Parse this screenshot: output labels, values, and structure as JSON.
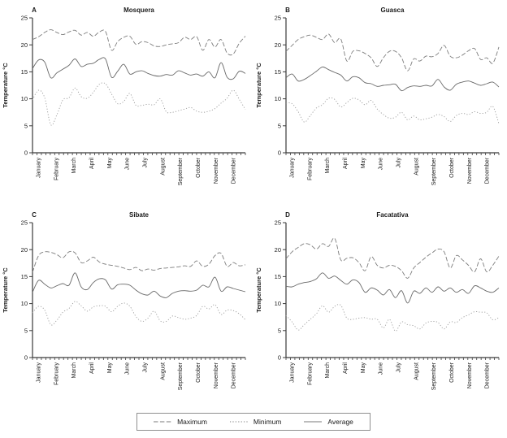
{
  "figure": {
    "ylabel": "Temperature °C",
    "months": [
      "January",
      "February",
      "March",
      "April",
      "May",
      "June",
      "July",
      "August",
      "September",
      "October",
      "November",
      "December"
    ],
    "yticks": [
      0,
      5,
      10,
      15,
      20,
      25
    ],
    "ylim": [
      0,
      25
    ],
    "points_per_month": 3,
    "minor_ticks_x": 48
  },
  "colors": {
    "background": "#ffffff",
    "axis": "#3a3a3a",
    "text": "#1a1a1a",
    "line_maximum": "#7d7d7d",
    "line_average": "#686868",
    "line_minimum": "#9b9b9b",
    "legend_border": "#8f8f8f"
  },
  "legend": {
    "items": [
      {
        "label": "Maximum",
        "style": "dash"
      },
      {
        "label": "Minimum",
        "style": "dot"
      },
      {
        "label": "Average",
        "style": "solid"
      }
    ]
  },
  "chart_data": [
    {
      "type": "line",
      "panel_label": "A",
      "title": "Mosquera",
      "xlabel": "",
      "ylabel": "Temperature °C",
      "ylim": [
        0,
        25
      ],
      "yticks": [
        0,
        5,
        10,
        15,
        20,
        25
      ],
      "x_categories": [
        "January",
        "February",
        "March",
        "April",
        "May",
        "June",
        "July",
        "August",
        "September",
        "October",
        "November",
        "December"
      ],
      "series": [
        {
          "name": "Maximum",
          "style": "dash",
          "values": [
            21.0,
            21.5,
            22.3,
            22.8,
            22.3,
            21.9,
            22.4,
            22.7,
            21.8,
            22.3,
            21.6,
            22.4,
            22.5,
            19.0,
            20.6,
            21.4,
            21.6,
            20.1,
            20.6,
            20.4,
            19.8,
            19.7,
            20.0,
            20.2,
            20.4,
            21.4,
            21.0,
            21.5,
            19.0,
            21.0,
            19.6,
            21.0,
            18.5,
            18.3,
            20.3,
            21.6
          ]
        },
        {
          "name": "Average",
          "style": "solid",
          "values": [
            15.6,
            17.2,
            16.8,
            13.9,
            14.8,
            15.5,
            16.2,
            17.4,
            16.0,
            16.4,
            16.6,
            17.3,
            17.4,
            14.0,
            15.1,
            16.4,
            14.6,
            15.0,
            15.2,
            14.7,
            14.3,
            14.2,
            14.5,
            14.4,
            15.2,
            14.8,
            14.4,
            14.6,
            14.2,
            15.0,
            13.9,
            16.7,
            14.0,
            13.7,
            15.1,
            14.7
          ]
        },
        {
          "name": "Minimum",
          "style": "dot",
          "values": [
            9.8,
            11.6,
            10.2,
            5.2,
            7.0,
            9.8,
            10.2,
            12.0,
            10.4,
            10.1,
            11.2,
            12.7,
            12.8,
            10.9,
            9.1,
            9.5,
            11.0,
            8.8,
            8.8,
            9.0,
            8.9,
            10.0,
            7.6,
            7.5,
            7.8,
            8.1,
            8.4,
            7.7,
            7.5,
            7.7,
            8.2,
            9.2,
            10.1,
            11.6,
            9.9,
            8.0
          ]
        }
      ]
    },
    {
      "type": "line",
      "panel_label": "B",
      "title": "Guasca",
      "xlabel": "",
      "ylabel": "Temperature °C",
      "ylim": [
        0,
        25
      ],
      "yticks": [
        0,
        5,
        10,
        15,
        20,
        25
      ],
      "x_categories": [
        "January",
        "February",
        "March",
        "April",
        "May",
        "June",
        "July",
        "August",
        "September",
        "October",
        "November",
        "December"
      ],
      "series": [
        {
          "name": "Maximum",
          "style": "dash",
          "values": [
            18.8,
            19.9,
            21.0,
            21.5,
            21.8,
            21.4,
            21.0,
            22.0,
            20.4,
            21.1,
            17.0,
            18.8,
            18.9,
            18.4,
            17.6,
            16.0,
            17.6,
            18.8,
            18.8,
            17.6,
            15.2,
            17.4,
            17.0,
            17.9,
            17.8,
            18.4,
            19.9,
            17.9,
            17.6,
            18.1,
            18.9,
            19.3,
            17.3,
            17.6,
            16.6,
            19.6
          ]
        },
        {
          "name": "Average",
          "style": "solid",
          "values": [
            13.9,
            14.6,
            13.3,
            13.6,
            14.3,
            15.1,
            15.9,
            15.4,
            14.9,
            14.4,
            13.3,
            14.1,
            13.9,
            13.0,
            12.8,
            12.3,
            12.5,
            12.6,
            12.7,
            11.5,
            12.1,
            12.4,
            12.3,
            12.5,
            12.4,
            13.6,
            12.2,
            11.6,
            12.7,
            13.1,
            13.3,
            12.9,
            12.5,
            12.8,
            13.1,
            12.2
          ]
        },
        {
          "name": "Minimum",
          "style": "dot",
          "values": [
            9.2,
            9.1,
            7.6,
            5.7,
            6.9,
            8.3,
            8.9,
            10.1,
            9.9,
            8.5,
            9.3,
            10.1,
            9.8,
            8.9,
            9.7,
            8.1,
            7.1,
            6.4,
            6.6,
            7.5,
            6.1,
            6.8,
            6.1,
            6.3,
            6.6,
            7.1,
            6.7,
            5.8,
            6.9,
            7.3,
            7.1,
            7.6,
            7.3,
            7.5,
            8.6,
            5.4
          ]
        }
      ]
    },
    {
      "type": "line",
      "panel_label": "C",
      "title": "Sibate",
      "xlabel": "",
      "ylabel": "Temperature °C",
      "ylim": [
        0,
        25
      ],
      "yticks": [
        0,
        5,
        10,
        15,
        20,
        25
      ],
      "x_categories": [
        "January",
        "February",
        "March",
        "April",
        "May",
        "June",
        "July",
        "August",
        "September",
        "October",
        "November",
        "December"
      ],
      "series": [
        {
          "name": "Maximum",
          "style": "dash",
          "values": [
            15.8,
            18.9,
            19.6,
            19.5,
            19.1,
            18.5,
            19.6,
            19.4,
            17.6,
            17.9,
            18.6,
            17.7,
            17.3,
            17.1,
            16.9,
            16.6,
            16.3,
            16.7,
            16.1,
            16.4,
            16.2,
            16.5,
            16.6,
            16.7,
            16.8,
            17.0,
            16.9,
            17.9,
            16.9,
            17.3,
            18.9,
            19.3,
            16.9,
            17.6,
            17.0,
            17.2
          ]
        },
        {
          "name": "Average",
          "style": "solid",
          "values": [
            12.1,
            14.3,
            13.6,
            12.9,
            13.3,
            13.7,
            13.4,
            15.7,
            13.1,
            12.6,
            13.9,
            14.6,
            14.4,
            12.7,
            13.5,
            13.6,
            13.4,
            12.5,
            11.8,
            11.6,
            12.3,
            11.4,
            11.1,
            11.9,
            12.3,
            12.4,
            12.3,
            12.5,
            13.4,
            13.1,
            14.9,
            12.3,
            13.1,
            12.8,
            12.5,
            12.2
          ]
        },
        {
          "name": "Minimum",
          "style": "dot",
          "values": [
            8.3,
            9.5,
            8.8,
            6.1,
            6.9,
            8.4,
            9.1,
            10.4,
            9.6,
            8.6,
            9.4,
            9.6,
            9.5,
            8.5,
            9.5,
            10.1,
            9.5,
            7.6,
            6.7,
            7.3,
            8.6,
            6.8,
            6.7,
            7.7,
            7.4,
            7.1,
            7.3,
            7.8,
            9.5,
            9.0,
            9.8,
            8.0,
            8.8,
            8.7,
            8.1,
            7.0
          ]
        }
      ]
    },
    {
      "type": "line",
      "panel_label": "D",
      "title": "Facatativa",
      "xlabel": "",
      "ylabel": "Temperature °C",
      "ylim": [
        0,
        25
      ],
      "yticks": [
        0,
        5,
        10,
        15,
        20,
        25
      ],
      "x_categories": [
        "January",
        "February",
        "March",
        "April",
        "May",
        "June",
        "July",
        "August",
        "September",
        "October",
        "November",
        "December"
      ],
      "series": [
        {
          "name": "Maximum",
          "style": "dash",
          "values": [
            18.3,
            19.6,
            20.4,
            21.1,
            20.9,
            20.1,
            21.1,
            20.6,
            22.1,
            18.1,
            18.4,
            18.5,
            17.6,
            16.1,
            18.7,
            17.1,
            16.6,
            17.1,
            16.9,
            16.1,
            14.7,
            16.6,
            17.6,
            18.6,
            19.4,
            20.1,
            19.6,
            16.6,
            18.9,
            18.1,
            17.1,
            15.9,
            18.3,
            15.9,
            17.1,
            18.8
          ]
        },
        {
          "name": "Average",
          "style": "solid",
          "values": [
            13.2,
            13.1,
            13.6,
            13.9,
            14.1,
            14.6,
            15.7,
            14.7,
            15.1,
            14.3,
            13.6,
            14.4,
            13.9,
            12.1,
            12.9,
            12.5,
            11.6,
            12.6,
            11.1,
            12.4,
            10.1,
            12.3,
            11.9,
            12.9,
            12.1,
            13.1,
            12.3,
            12.9,
            12.1,
            12.6,
            11.9,
            13.3,
            12.9,
            12.3,
            12.1,
            12.9
          ]
        },
        {
          "name": "Minimum",
          "style": "dot",
          "values": [
            7.8,
            6.6,
            5.1,
            6.1,
            7.1,
            8.1,
            9.6,
            8.4,
            9.5,
            9.7,
            7.3,
            7.1,
            7.3,
            7.4,
            7.1,
            7.1,
            5.5,
            7.1,
            4.9,
            6.6,
            6.1,
            5.9,
            5.3,
            6.4,
            6.7,
            6.5,
            5.3,
            6.6,
            6.5,
            7.4,
            7.9,
            8.5,
            8.4,
            8.3,
            7.0,
            7.4
          ]
        }
      ]
    }
  ]
}
